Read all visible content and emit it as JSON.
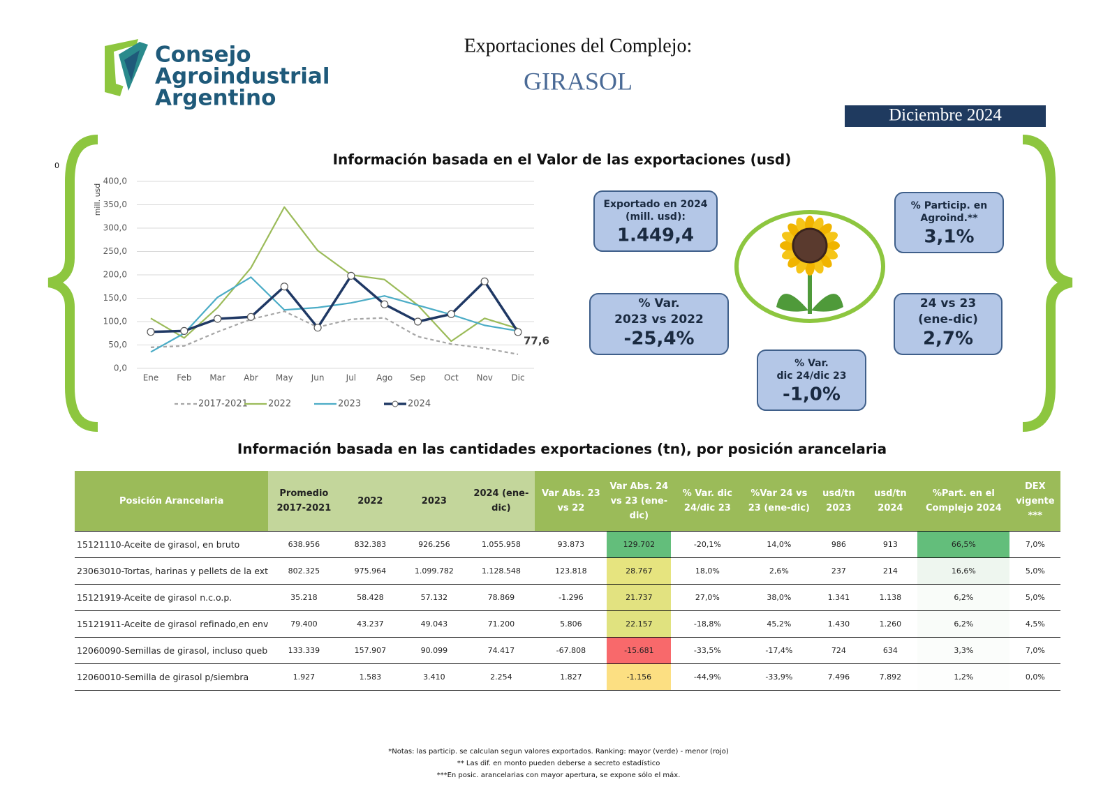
{
  "header": {
    "logo_lines": [
      "Consejo",
      "Agroindustrial",
      "Argentino"
    ],
    "title": "Exportaciones del Complejo:",
    "subtitle": "GIRASOL",
    "period": "Diciembre 2024",
    "corner_mark": "0"
  },
  "chart_data": {
    "type": "line",
    "title": "Información basada en el Valor de las exportaciones (usd)",
    "y_label": "mill. usd",
    "categories": [
      "Ene",
      "Feb",
      "Mar",
      "Abr",
      "May",
      "Jun",
      "Jul",
      "Ago",
      "Sep",
      "Oct",
      "Nov",
      "Dic"
    ],
    "series": [
      {
        "name": "2017-2021",
        "color": "#a6a6a6",
        "dashed": true,
        "values": [
          45,
          48,
          78,
          105,
          122,
          88,
          105,
          108,
          68,
          52,
          43,
          30
        ]
      },
      {
        "name": "2022",
        "color": "#9bbb59",
        "values": [
          107,
          65,
          130,
          215,
          345,
          252,
          200,
          190,
          135,
          58,
          107,
          85
        ]
      },
      {
        "name": "2023",
        "color": "#4bacc6",
        "values": [
          35,
          75,
          152,
          195,
          125,
          130,
          140,
          155,
          135,
          115,
          92,
          80
        ]
      },
      {
        "name": "2024",
        "color": "#1f3864",
        "markers": true,
        "values": [
          78,
          80,
          106,
          110,
          175,
          87,
          198,
          137,
          100,
          116,
          186,
          77.6
        ],
        "value_labels": [
          null,
          null,
          null,
          null,
          null,
          null,
          null,
          null,
          null,
          null,
          null,
          "77,6"
        ]
      }
    ],
    "ylim": [
      0,
      400
    ],
    "yticks": [
      {
        "value": 0,
        "label": "0,0"
      },
      {
        "value": 50,
        "label": "50,0"
      },
      {
        "value": 100,
        "label": "100,0"
      },
      {
        "value": 150,
        "label": "150,0"
      },
      {
        "value": 200,
        "label": "200,0"
      },
      {
        "value": 250,
        "label": "250,0"
      },
      {
        "value": 300,
        "label": "300,0"
      },
      {
        "value": 350,
        "label": "350,0"
      },
      {
        "value": 400,
        "label": "400,0"
      }
    ],
    "grid": true
  },
  "kpis": [
    {
      "label": [
        "Exportado en 2024",
        "(mill. usd):"
      ],
      "value": "1.449,4"
    },
    {
      "label": [
        "% Var.",
        "2023 vs 2022"
      ],
      "value": "-25,4%"
    },
    {
      "label": [
        "% Var.",
        "dic 24/dic 23"
      ],
      "value": "-1,0%"
    },
    {
      "label": [
        "% Particip. en",
        "Agroind.**"
      ],
      "value": "3,1%"
    },
    {
      "label": [
        "24 vs 23",
        "(ene-dic)"
      ],
      "value": "2,7%"
    }
  ],
  "table": {
    "title": "Información basada en las cantidades exportaciones (tn), por posición arancelaria",
    "columns": [
      "Posición Arancelaria",
      "Promedio 2017-2021",
      "2022",
      "2023",
      "2024 (ene-dic)",
      "Var Abs. 23 vs 22",
      "Var Abs. 24 vs 23 (ene-dic)",
      "% Var. dic 24/dic 23",
      "%Var 24 vs 23 (ene-dic)",
      "usd/tn 2023",
      "usd/tn 2024",
      "%Part. en el Complejo 2024",
      "DEX vigente ***"
    ],
    "rows": [
      [
        "15121110-Aceite de girasol, en bruto",
        "638.956",
        "832.383",
        "926.256",
        "1.055.958",
        "93.873",
        "129.702",
        "-20,1%",
        "14,0%",
        "986",
        "913",
        "66,5%",
        "7,0%"
      ],
      [
        "23063010-Tortas, harinas y pellets de la ext",
        "802.325",
        "975.964",
        "1.099.782",
        "1.128.548",
        "123.818",
        "28.767",
        "18,0%",
        "2,6%",
        "237",
        "214",
        "16,6%",
        "5,0%"
      ],
      [
        "15121919-Aceite de girasol n.c.o.p.",
        "35.218",
        "58.428",
        "57.132",
        "78.869",
        "-1.296",
        "21.737",
        "27,0%",
        "38,0%",
        "1.341",
        "1.138",
        "6,2%",
        "5,0%"
      ],
      [
        "15121911-Aceite de girasol refinado,en env",
        "79.400",
        "43.237",
        "49.043",
        "71.200",
        "5.806",
        "22.157",
        "-18,8%",
        "45,2%",
        "1.430",
        "1.260",
        "6,2%",
        "4,5%"
      ],
      [
        "12060090-Semillas de girasol, incluso queb",
        "133.339",
        "157.907",
        "90.099",
        "74.417",
        "-67.808",
        "-15.681",
        "-33,5%",
        "-17,4%",
        "724",
        "634",
        "3,3%",
        "7,0%"
      ],
      [
        "12060010-Semilla de girasol p/siembra",
        "1.927",
        "1.583",
        "3.410",
        "2.254",
        "1.827",
        "-1.156",
        "-44,9%",
        "-33,9%",
        "7.496",
        "7.892",
        "1,2%",
        "0,0%"
      ]
    ],
    "highlights": [
      {
        "column": 6,
        "colors": [
          "#63be7b",
          "#e6e47f",
          "#e2e280",
          "#e0e27f",
          "#f8696b",
          "#fcdf82"
        ]
      },
      {
        "column": 11,
        "colors": [
          "#63be7b",
          "#eef6ef",
          "#f9fcf9",
          "#f9fcf9",
          "#fbfdfb",
          "#fdfefd"
        ]
      }
    ]
  },
  "notes": [
    "*Notas: las particip. se calculan segun valores exportados. Ranking: mayor (verde) - menor (rojo)",
    "** Las dif. en monto pueden deberse a secreto estadístico",
    "***En posic. arancelarias con mayor apertura, se expone sólo el máx."
  ]
}
